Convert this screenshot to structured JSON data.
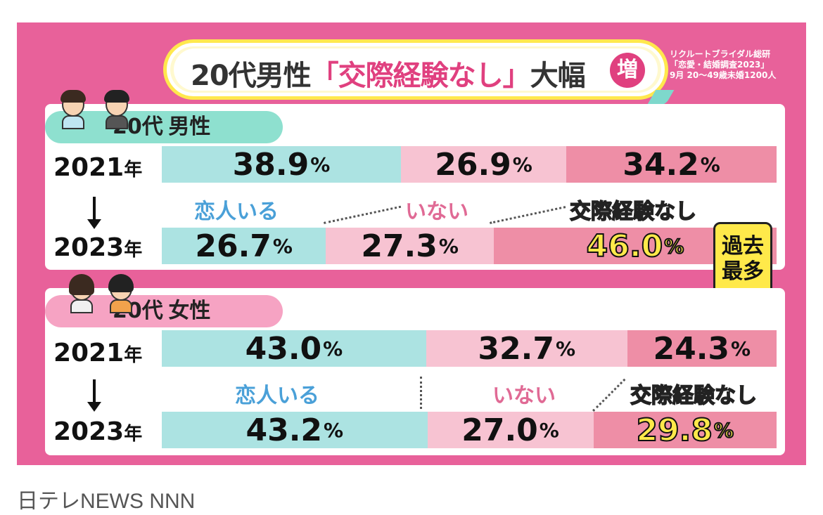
{
  "title": {
    "prefix": "20代男性",
    "highlight": "「交際経験なし」",
    "suffix": "大幅",
    "badge": "増"
  },
  "source": {
    "line1": "リクルートブライダル総研",
    "line2": "「恋愛・結婚調査2023」",
    "line3": "9月 20～49歳未婚1200人"
  },
  "categories": {
    "in_relationship": "恋人いる",
    "none": "いない",
    "never": "交際経験なし"
  },
  "record_badge": {
    "line1": "過去",
    "line2": "最多"
  },
  "credit": "日テレNEWS NNN",
  "colors": {
    "background": "#e8619a",
    "in_relationship": "#ace3e2",
    "none": "#f7c3d2",
    "never": "#ee8ea6",
    "highlight_yellow": "#ffe94a"
  },
  "chart_data": [
    {
      "type": "bar",
      "stacked": true,
      "orientation": "horizontal",
      "title": "20代 男性",
      "title_main": "20代",
      "title_sub": "男性",
      "categories": [
        "2021年",
        "2023年"
      ],
      "years": [
        "2021",
        "2023"
      ],
      "year_suffix": "年",
      "series": [
        {
          "name": "恋人いる",
          "values": [
            38.9,
            26.7
          ],
          "labels": [
            "38.9",
            "26.7"
          ]
        },
        {
          "name": "いない",
          "values": [
            26.9,
            27.3
          ],
          "labels": [
            "26.9",
            "27.3"
          ]
        },
        {
          "name": "交際経験なし",
          "values": [
            34.2,
            46.0
          ],
          "labels": [
            "34.2",
            "46.0"
          ]
        }
      ],
      "unit": "%",
      "xlim": [
        0,
        100
      ]
    },
    {
      "type": "bar",
      "stacked": true,
      "orientation": "horizontal",
      "title": "20代 女性",
      "title_main": "20代",
      "title_sub": "女性",
      "categories": [
        "2021年",
        "2023年"
      ],
      "years": [
        "2021",
        "2023"
      ],
      "year_suffix": "年",
      "series": [
        {
          "name": "恋人いる",
          "values": [
            43.0,
            43.2
          ],
          "labels": [
            "43.0",
            "43.2"
          ]
        },
        {
          "name": "いない",
          "values": [
            32.7,
            27.0
          ],
          "labels": [
            "32.7",
            "27.0"
          ]
        },
        {
          "name": "交際経験なし",
          "values": [
            24.3,
            29.8
          ],
          "labels": [
            "24.3",
            "29.8"
          ]
        }
      ],
      "unit": "%",
      "xlim": [
        0,
        100
      ]
    }
  ]
}
